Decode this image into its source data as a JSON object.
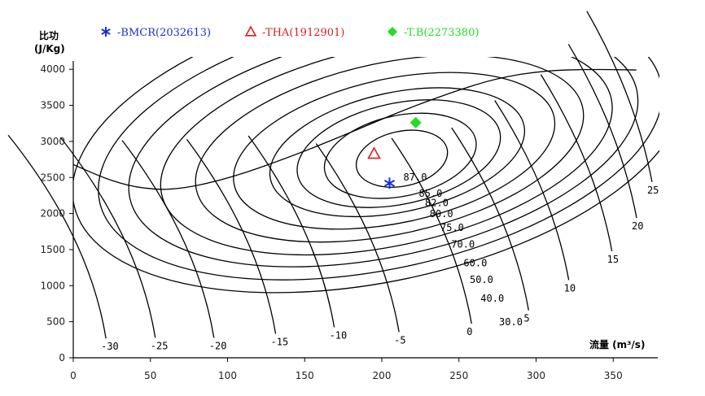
{
  "chart_data": {
    "type": "line",
    "title": "",
    "ylabel_line1": "比功",
    "ylabel_line2": "(J/Kg)",
    "xlabel": "流量 (m³/s)",
    "xlim": [
      0,
      375
    ],
    "ylim": [
      0,
      4200
    ],
    "x_ticks": [
      0,
      50,
      100,
      150,
      200,
      250,
      300,
      350
    ],
    "y_ticks": [
      0,
      500,
      1000,
      1500,
      2000,
      2500,
      3000,
      3500,
      4000
    ],
    "grid": false,
    "legend_placement": "top",
    "legend": [
      {
        "marker": "asterisk",
        "label": "-BMCR(2032613)",
        "color": "#1a2fd6"
      },
      {
        "marker": "triangle",
        "label": "-THA(1912901)",
        "color": "#d62020"
      },
      {
        "marker": "diamond",
        "label": "-T.B(2273380)",
        "color": "#22dd22"
      }
    ],
    "operating_points": [
      {
        "name": "BMCR",
        "x": 205,
        "y": 2420,
        "color": "#1a2fd6",
        "marker": "asterisk"
      },
      {
        "name": "THA",
        "x": 195,
        "y": 2830,
        "color": "#d62020",
        "marker": "triangle"
      },
      {
        "name": "T.B",
        "x": 222,
        "y": 3260,
        "color": "#22dd22",
        "marker": "diamond"
      }
    ],
    "efficiency_labels": [
      {
        "label": "87.0",
        "x": 214,
        "y": 2460
      },
      {
        "label": "85.0",
        "x": 224,
        "y": 2230
      },
      {
        "label": "82.0",
        "x": 228,
        "y": 2100
      },
      {
        "label": "80.0",
        "x": 231,
        "y": 1950
      },
      {
        "label": "75.0",
        "x": 238,
        "y": 1760
      },
      {
        "label": "70.0",
        "x": 245,
        "y": 1530
      },
      {
        "label": "60.0",
        "x": 253,
        "y": 1270
      },
      {
        "label": "50.0",
        "x": 257,
        "y": 1040
      },
      {
        "label": "40.0",
        "x": 264,
        "y": 780
      },
      {
        "label": "30.0",
        "x": 276,
        "y": 450
      }
    ],
    "blade_angle_labels": [
      {
        "label": "-30",
        "x": 18,
        "y": 110
      },
      {
        "label": "-25",
        "x": 50,
        "y": 120
      },
      {
        "label": "-20",
        "x": 88,
        "y": 120
      },
      {
        "label": "-15",
        "x": 128,
        "y": 175
      },
      {
        "label": "-10",
        "x": 166,
        "y": 265
      },
      {
        "label": "-5",
        "x": 208,
        "y": 200
      },
      {
        "label": "0",
        "x": 255,
        "y": 315
      },
      {
        "label": "5",
        "x": 292,
        "y": 500
      },
      {
        "label": "10",
        "x": 318,
        "y": 920
      },
      {
        "label": "15",
        "x": 346,
        "y": 1320
      },
      {
        "label": "20",
        "x": 362,
        "y": 1780
      },
      {
        "label": "25",
        "x": 372,
        "y": 2280
      }
    ],
    "efficiency_contours": [
      {
        "cx": 213,
        "cy": 2760,
        "rx": 30,
        "ry": 380
      },
      {
        "cx": 212,
        "cy": 2800,
        "rx": 50,
        "ry": 560
      },
      {
        "cx": 211,
        "cy": 2830,
        "rx": 67,
        "ry": 700
      },
      {
        "cx": 210,
        "cy": 2850,
        "rx": 84,
        "ry": 830
      },
      {
        "cx": 208,
        "cy": 2870,
        "rx": 106,
        "ry": 1000
      },
      {
        "cx": 205,
        "cy": 2900,
        "rx": 128,
        "ry": 1190
      },
      {
        "cx": 203,
        "cy": 2930,
        "rx": 149,
        "ry": 1380
      },
      {
        "cx": 201,
        "cy": 2960,
        "rx": 168,
        "ry": 1560
      },
      {
        "cx": 199,
        "cy": 2990,
        "rx": 186,
        "ry": 1760
      },
      {
        "cx": 198,
        "cy": 3020,
        "rx": 202,
        "ry": 1960
      }
    ],
    "envelope": [
      [
        0,
        2680
      ],
      [
        20,
        2490
      ],
      [
        40,
        2360
      ],
      [
        65,
        2320
      ],
      [
        100,
        2480
      ],
      [
        140,
        2780
      ],
      [
        175,
        3080
      ],
      [
        210,
        3400
      ],
      [
        245,
        3680
      ],
      [
        275,
        3880
      ],
      [
        305,
        3980
      ],
      [
        335,
        4000
      ],
      [
        365,
        3990
      ]
    ]
  }
}
